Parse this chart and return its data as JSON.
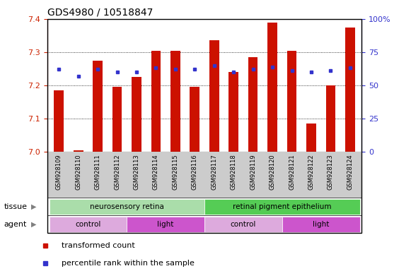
{
  "title": "GDS4980 / 10518847",
  "samples": [
    "GSM928109",
    "GSM928110",
    "GSM928111",
    "GSM928112",
    "GSM928113",
    "GSM928114",
    "GSM928115",
    "GSM928116",
    "GSM928117",
    "GSM928118",
    "GSM928119",
    "GSM928120",
    "GSM928121",
    "GSM928122",
    "GSM928123",
    "GSM928124"
  ],
  "bar_values": [
    7.185,
    7.005,
    7.275,
    7.195,
    7.225,
    7.305,
    7.305,
    7.195,
    7.335,
    7.24,
    7.285,
    7.39,
    7.305,
    7.085,
    7.2,
    7.375
  ],
  "dot_values": [
    62,
    57,
    62,
    60,
    60,
    63,
    62,
    62,
    65,
    60,
    62,
    64,
    61,
    60,
    61,
    63
  ],
  "ylim_left": [
    7.0,
    7.4
  ],
  "ylim_right": [
    0,
    100
  ],
  "yticks_left": [
    7.0,
    7.1,
    7.2,
    7.3,
    7.4
  ],
  "yticks_right": [
    0,
    25,
    50,
    75,
    100
  ],
  "bar_color": "#cc1100",
  "dot_color": "#3333cc",
  "tissue_groups": [
    {
      "label": "neurosensory retina",
      "start": 0,
      "end": 7,
      "color": "#aaddaa"
    },
    {
      "label": "retinal pigment epithelium",
      "start": 8,
      "end": 15,
      "color": "#55cc55"
    }
  ],
  "agent_groups": [
    {
      "label": "control",
      "start": 0,
      "end": 3,
      "color": "#ddaadd"
    },
    {
      "label": "light",
      "start": 4,
      "end": 7,
      "color": "#cc55cc"
    },
    {
      "label": "control",
      "start": 8,
      "end": 11,
      "color": "#ddaadd"
    },
    {
      "label": "light",
      "start": 12,
      "end": 15,
      "color": "#cc55cc"
    }
  ],
  "legend_items": [
    {
      "label": "transformed count",
      "color": "#cc1100",
      "marker": "s"
    },
    {
      "label": "percentile rank within the sample",
      "color": "#3333cc",
      "marker": "s"
    }
  ],
  "tissue_label": "tissue",
  "agent_label": "agent",
  "background_color": "#ffffff",
  "tick_color_left": "#cc2200",
  "tick_color_right": "#3333cc",
  "xlabel_bg": "#cccccc",
  "title_fontsize": 10,
  "tick_fontsize": 8,
  "sample_fontsize": 6,
  "row_fontsize": 7.5,
  "legend_fontsize": 8
}
